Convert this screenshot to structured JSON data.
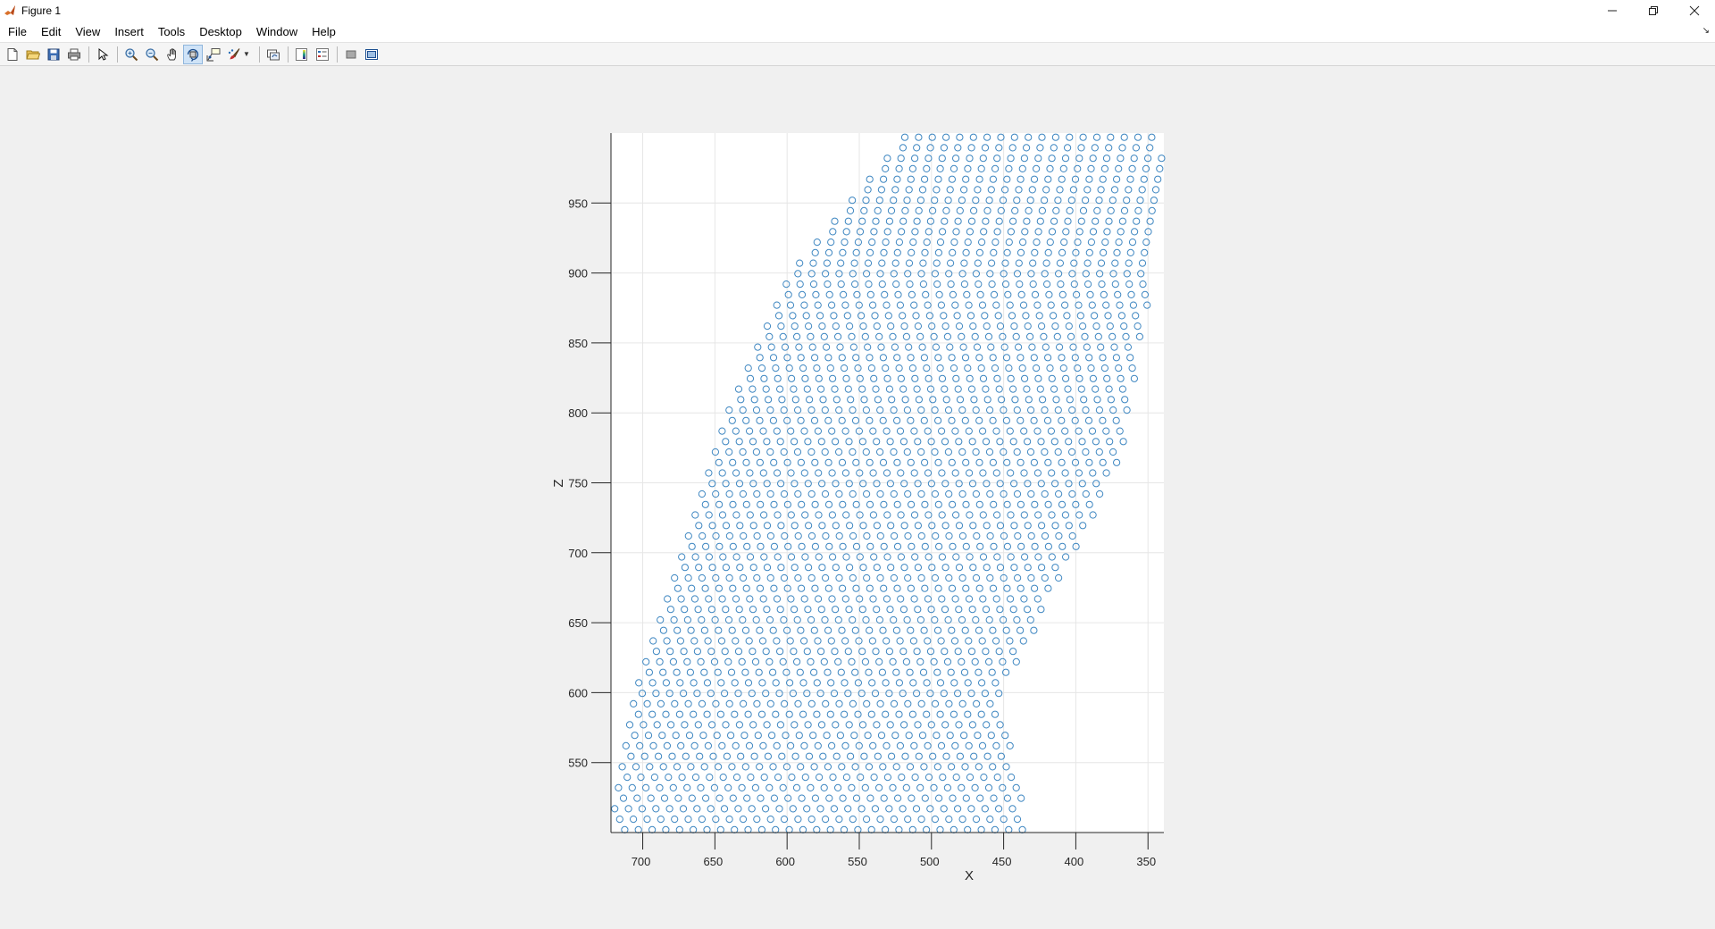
{
  "window": {
    "title": "Figure 1",
    "controls": [
      "minimize",
      "restore",
      "close"
    ]
  },
  "menu": [
    "File",
    "Edit",
    "View",
    "Insert",
    "Tools",
    "Desktop",
    "Window",
    "Help"
  ],
  "toolbar": {
    "icons": [
      "new-figure-icon",
      "open-file-icon",
      "save-icon",
      "print-icon",
      "pointer-icon",
      "zoom-in-icon",
      "zoom-out-icon",
      "pan-icon",
      "rotate-3d-icon",
      "data-cursor-icon",
      "brush-icon",
      "link-plot-icon",
      "colorbar-icon",
      "legend-icon",
      "hide-plot-tools-icon",
      "show-plot-tools-icon"
    ],
    "active": "rotate-3d-icon"
  },
  "colors": {
    "marker": "#3d86c1",
    "grid": "#e6e6e6",
    "axis": "#262626",
    "plot_bg": "#ffffff",
    "figure_bg": "#f0f0f0"
  },
  "chart_data": {
    "type": "scatter",
    "marker": "o",
    "title": "",
    "xlabel": "X",
    "ylabel": "Z",
    "x_reversed": true,
    "xlim": [
      339,
      722
    ],
    "ylim": [
      500,
      1000
    ],
    "xticks": [
      700,
      650,
      600,
      550,
      500,
      450,
      400,
      350
    ],
    "yticks": [
      550,
      600,
      650,
      700,
      750,
      800,
      850,
      900,
      950
    ],
    "grid": true,
    "lattice": {
      "row_spacing_z": 7.5,
      "num_rows": 67,
      "point_spacing_x": 9.5,
      "bottom_row": {
        "z": 502,
        "x_left": 722,
        "x_right": 433
      },
      "top_row": {
        "z": 997,
        "x_left": 516,
        "x_right": 339
      },
      "right_boundary": [
        [
          502,
          433
        ],
        [
          600,
          452
        ],
        [
          700,
          400
        ],
        [
          780,
          363
        ],
        [
          800,
          363
        ],
        [
          900,
          346
        ],
        [
          1000,
          339
        ]
      ],
      "left_boundary": [
        [
          502,
          722
        ],
        [
          600,
          705
        ],
        [
          700,
          672
        ],
        [
          800,
          641
        ],
        [
          900,
          597
        ],
        [
          1000,
          516
        ]
      ]
    }
  }
}
